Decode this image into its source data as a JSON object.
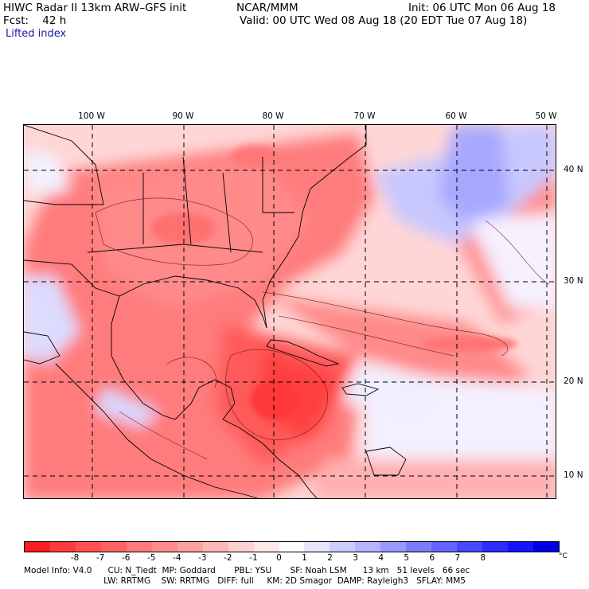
{
  "header": {
    "title_line": "HIWC Radar II 13km ARW–GFS init",
    "org": "NCAR/MMM",
    "init": "Init: 06 UTC Mon 06 Aug 18",
    "fcst": "Fcst:    42 h",
    "valid": "Valid: 00 UTC Wed 08 Aug 18 (20 EDT Tue 07 Aug 18)",
    "field": "Lifted index"
  },
  "map": {
    "lon_labels": [
      "100 W",
      "90 W",
      "80 W",
      "70 W",
      "60 W",
      "50 W"
    ],
    "lat_labels": [
      "40 N",
      "30 N",
      "20 N",
      "10 N"
    ]
  },
  "colorbar": {
    "colors": [
      "#ff1e1e",
      "#ff3c3c",
      "#ff5050",
      "#ff6464",
      "#ff7a7a",
      "#ff8c8c",
      "#ffa0a0",
      "#ffb8b8",
      "#ffd2d2",
      "#ffe8e8",
      "#ffffff",
      "#e6e6ff",
      "#ccccff",
      "#b4b4ff",
      "#9898ff",
      "#7c7cff",
      "#6464ff",
      "#4848ff",
      "#2c2cff",
      "#1414ff",
      "#0000e6"
    ],
    "ticks": [
      "-8",
      "-7",
      "-6",
      "-5",
      "-4",
      "-3",
      "-2",
      "-1",
      "0",
      "1",
      "2",
      "3",
      "4",
      "5",
      "6",
      "7",
      "8"
    ],
    "unit": "°C"
  },
  "model_info": {
    "line1": "Model Info: V4.0      CU: N_Tiedt  MP: Goddard       PBL: YSU       SF: Noah LSM      13 km   51 levels   66 sec",
    "line2": "                              LW: RRTMG    SW: RRTMG   DIFF: full     KM: 2D Smagor  DAMP: Rayleigh3   SFLAY: MM5"
  }
}
